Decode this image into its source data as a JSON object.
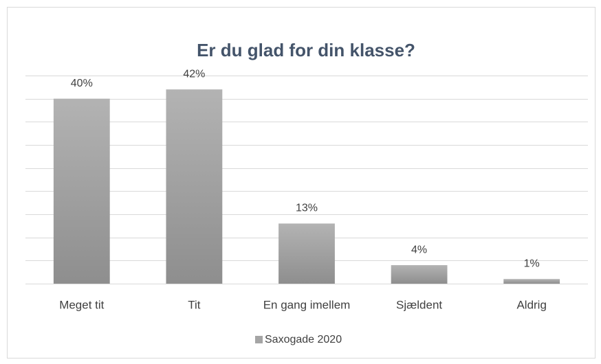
{
  "chart_data": {
    "type": "bar",
    "title": "Er du glad for din klasse?",
    "categories": [
      "Meget tit",
      "Tit",
      "En gang imellem",
      "Sjældent",
      "Aldrig"
    ],
    "series": [
      {
        "name": "Saxogade 2020",
        "color": "#a5a5a5",
        "values": [
          40,
          42,
          13,
          4,
          1
        ],
        "value_labels": [
          "40%",
          "42%",
          "13%",
          "4%",
          "1%"
        ]
      }
    ],
    "ylim": [
      0,
      45
    ],
    "yticks": [
      0,
      5,
      10,
      15,
      20,
      25,
      30,
      35,
      40,
      45
    ],
    "grid": true,
    "legend": "bottom"
  }
}
